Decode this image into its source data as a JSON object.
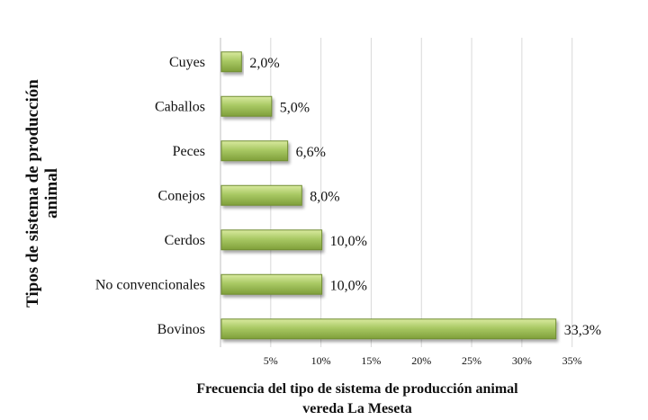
{
  "chart_data": {
    "type": "bar",
    "orientation": "horizontal",
    "categories": [
      "Cuyes",
      "Caballos",
      "Peces",
      "Conejos",
      "Cerdos",
      "No convencionales",
      "Bovinos"
    ],
    "values": [
      2.0,
      5.0,
      6.6,
      8.0,
      10.0,
      10.0,
      33.3
    ],
    "value_labels": [
      "2,0%",
      "5,0%",
      "6,6%",
      "8,0%",
      "10,0%",
      "10,0%",
      "33,3%"
    ],
    "xticks": [
      "5%",
      "10%",
      "15%",
      "20%",
      "25%",
      "30%",
      "35%"
    ],
    "xtick_values": [
      5,
      10,
      15,
      20,
      25,
      30,
      35
    ],
    "xlim": [
      0,
      37
    ],
    "xlabel_lines": [
      "Frecuencia del tipo de sistema de producción animal",
      "vereda La Meseta"
    ],
    "ylabel_lines": [
      "Tipos de sistema de producción",
      "animal"
    ],
    "grid": "vertical",
    "bar_color": "#9bbb59"
  }
}
